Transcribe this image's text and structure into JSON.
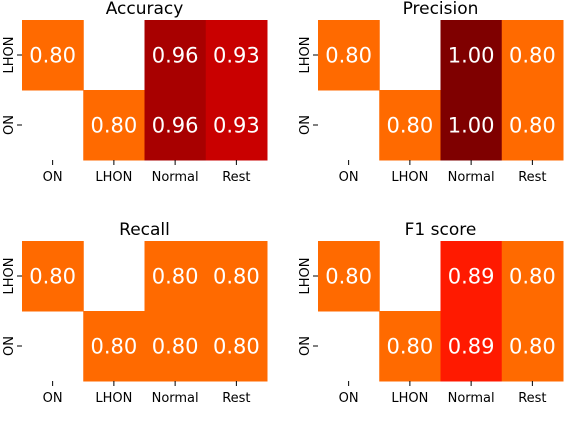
{
  "chart_data": [
    {
      "type": "heatmap",
      "title": "Accuracy",
      "x_categories": [
        "ON",
        "LHON",
        "Normal",
        "Rest"
      ],
      "y_categories": [
        "LHON",
        "ON"
      ],
      "cells": [
        {
          "row": "LHON",
          "col": "ON",
          "value": 0.8,
          "label": "0.80",
          "color": "#ff6a00"
        },
        {
          "row": "LHON",
          "col": "Normal",
          "value": 0.96,
          "label": "0.96",
          "color": "#a80000"
        },
        {
          "row": "LHON",
          "col": "Rest",
          "value": 0.93,
          "label": "0.93",
          "color": "#c90000"
        },
        {
          "row": "ON",
          "col": "LHON",
          "value": 0.8,
          "label": "0.80",
          "color": "#ff6a00"
        },
        {
          "row": "ON",
          "col": "Normal",
          "value": 0.96,
          "label": "0.96",
          "color": "#a80000"
        },
        {
          "row": "ON",
          "col": "Rest",
          "value": 0.93,
          "label": "0.93",
          "color": "#c90000"
        }
      ]
    },
    {
      "type": "heatmap",
      "title": "Precision",
      "x_categories": [
        "ON",
        "LHON",
        "Normal",
        "Rest"
      ],
      "y_categories": [
        "LHON",
        "ON"
      ],
      "cells": [
        {
          "row": "LHON",
          "col": "ON",
          "value": 0.8,
          "label": "0.80",
          "color": "#ff6a00"
        },
        {
          "row": "LHON",
          "col": "Normal",
          "value": 1.0,
          "label": "1.00",
          "color": "#7f0000"
        },
        {
          "row": "LHON",
          "col": "Rest",
          "value": 0.8,
          "label": "0.80",
          "color": "#ff6a00"
        },
        {
          "row": "ON",
          "col": "LHON",
          "value": 0.8,
          "label": "0.80",
          "color": "#ff6a00"
        },
        {
          "row": "ON",
          "col": "Normal",
          "value": 1.0,
          "label": "1.00",
          "color": "#7f0000"
        },
        {
          "row": "ON",
          "col": "Rest",
          "value": 0.8,
          "label": "0.80",
          "color": "#ff6a00"
        }
      ]
    },
    {
      "type": "heatmap",
      "title": "Recall",
      "x_categories": [
        "ON",
        "LHON",
        "Normal",
        "Rest"
      ],
      "y_categories": [
        "LHON",
        "ON"
      ],
      "cells": [
        {
          "row": "LHON",
          "col": "ON",
          "value": 0.8,
          "label": "0.80",
          "color": "#ff6a00"
        },
        {
          "row": "LHON",
          "col": "Normal",
          "value": 0.8,
          "label": "0.80",
          "color": "#ff6a00"
        },
        {
          "row": "LHON",
          "col": "Rest",
          "value": 0.8,
          "label": "0.80",
          "color": "#ff6a00"
        },
        {
          "row": "ON",
          "col": "LHON",
          "value": 0.8,
          "label": "0.80",
          "color": "#ff6a00"
        },
        {
          "row": "ON",
          "col": "Normal",
          "value": 0.8,
          "label": "0.80",
          "color": "#ff6a00"
        },
        {
          "row": "ON",
          "col": "Rest",
          "value": 0.8,
          "label": "0.80",
          "color": "#ff6a00"
        }
      ]
    },
    {
      "type": "heatmap",
      "title": "F1 score",
      "x_categories": [
        "ON",
        "LHON",
        "Normal",
        "Rest"
      ],
      "y_categories": [
        "LHON",
        "ON"
      ],
      "cells": [
        {
          "row": "LHON",
          "col": "ON",
          "value": 0.8,
          "label": "0.80",
          "color": "#ff6a00"
        },
        {
          "row": "LHON",
          "col": "Normal",
          "value": 0.89,
          "label": "0.89",
          "color": "#ff1a00"
        },
        {
          "row": "LHON",
          "col": "Rest",
          "value": 0.8,
          "label": "0.80",
          "color": "#ff6a00"
        },
        {
          "row": "ON",
          "col": "LHON",
          "value": 0.8,
          "label": "0.80",
          "color": "#ff6a00"
        },
        {
          "row": "ON",
          "col": "Normal",
          "value": 0.89,
          "label": "0.89",
          "color": "#ff1a00"
        },
        {
          "row": "ON",
          "col": "Rest",
          "value": 0.8,
          "label": "0.80",
          "color": "#ff6a00"
        }
      ]
    }
  ]
}
